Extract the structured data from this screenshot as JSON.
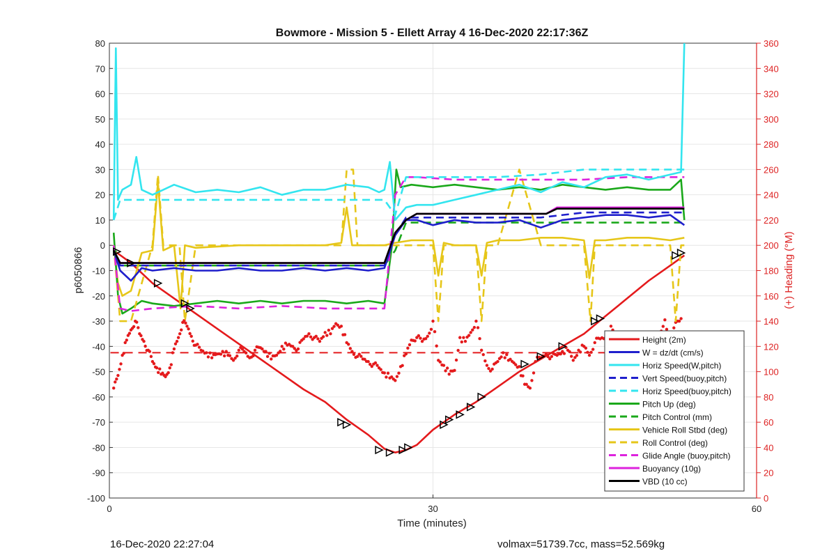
{
  "chart_data": {
    "type": "line",
    "title": "Bowmore - Mission 5 - Ellett Array 4 16-Dec-2020 22:17:36Z",
    "xlabel": "Time (minutes)",
    "ylabel_left": "p6050866",
    "ylabel_right": "(+) Heading (°M)",
    "xlim": [
      0,
      60
    ],
    "ylim_left": [
      -100,
      80
    ],
    "ylim_right": [
      0,
      360
    ],
    "x_ticks": [
      0,
      30,
      60
    ],
    "y_ticks_left": [
      -100,
      -90,
      -80,
      -70,
      -60,
      -50,
      -40,
      -30,
      -20,
      -10,
      0,
      10,
      20,
      30,
      40,
      50,
      60,
      70,
      80
    ],
    "y_ticks_right": [
      0,
      20,
      40,
      60,
      80,
      100,
      120,
      140,
      160,
      180,
      200,
      220,
      240,
      260,
      280,
      300,
      320,
      340,
      360
    ],
    "grid": true,
    "legend_position": "bottom-right",
    "colors": {
      "red": "#e41a1c",
      "blue": "#1f1fcc",
      "cyan": "#33e5ef",
      "green": "#1aa81a",
      "yellow": "#e6c619",
      "magenta": "#dd22dd",
      "black": "#000000",
      "right_axis": "#dd2222"
    },
    "series": [
      {
        "name": "Height (2m)",
        "color": "#e41a1c",
        "style": "solid",
        "axis": "left",
        "x": [
          0.4,
          2,
          4,
          6,
          8,
          10,
          12,
          14,
          16,
          18,
          20,
          22,
          24,
          25.5,
          26.5,
          27.5,
          28.5,
          30,
          32,
          34,
          36,
          38,
          40,
          42,
          44,
          46,
          48,
          50,
          52,
          53.3
        ],
        "y": [
          -2,
          -7,
          -15,
          -21,
          -27,
          -33,
          -39,
          -45,
          -51,
          -57,
          -62,
          -69,
          -75,
          -80.5,
          -82,
          -81,
          -79,
          -73,
          -67,
          -62,
          -56,
          -50,
          -45,
          -40,
          -35,
          -28,
          -21,
          -14,
          -8,
          -4
        ]
      },
      {
        "name": "W = dz/dt (cm/s)",
        "color": "#1f1fcc",
        "style": "solid",
        "axis": "left",
        "x": [
          0.4,
          1,
          2,
          3,
          4,
          6,
          8,
          10,
          12,
          14,
          16,
          18,
          20,
          22,
          24,
          25.5,
          26.5,
          27.5,
          28.5,
          30,
          32,
          34,
          36,
          38,
          40,
          42,
          44,
          46,
          48,
          50,
          52,
          53.3
        ],
        "y": [
          -2,
          -10,
          -14,
          -9,
          -10,
          -9,
          -10,
          -10,
          -9,
          -10,
          -10,
          -9,
          -10,
          -9,
          -10,
          -9,
          4,
          10,
          10,
          8,
          10,
          9,
          9,
          10,
          7,
          10,
          11,
          12,
          12,
          11,
          12,
          8
        ]
      },
      {
        "name": "Horiz Speed(W,pitch)",
        "color": "#33e5ef",
        "style": "solid",
        "axis": "left",
        "x": [
          0.4,
          0.6,
          0.8,
          1.2,
          2,
          2.5,
          3,
          4,
          6,
          8,
          10,
          12,
          14,
          16,
          18,
          20,
          22,
          24,
          25,
          25.5,
          26,
          26.5,
          27.5,
          28.5,
          30,
          32,
          34,
          36,
          38,
          40,
          42,
          44,
          46,
          48,
          50,
          52,
          53,
          53.3
        ],
        "y": [
          10,
          78,
          18,
          22,
          24,
          35,
          22,
          20,
          24,
          21,
          22,
          21,
          23,
          20,
          22,
          22,
          24,
          23,
          21,
          22,
          33,
          10,
          15,
          16,
          16,
          18,
          20,
          22,
          24,
          21,
          25,
          23,
          27,
          28,
          26,
          28,
          29,
          80
        ]
      },
      {
        "name": "Vert Speed(buoy,pitch)",
        "color": "#1f1fcc",
        "style": "dashed",
        "axis": "left",
        "x": [
          0.4,
          1,
          3,
          6,
          10,
          14,
          18,
          22,
          25.5,
          26.5,
          27.5,
          28.5,
          32,
          36,
          40,
          44,
          48,
          52,
          53.3
        ],
        "y": [
          -2,
          -8,
          -8,
          -8,
          -8,
          -8,
          -8,
          -8,
          -8,
          4,
          11,
          11,
          11,
          11,
          11,
          13,
          13,
          13,
          13
        ]
      },
      {
        "name": "Horiz Speed(buoy,pitch)",
        "color": "#33e5ef",
        "style": "dashed",
        "axis": "left",
        "x": [
          0.4,
          1,
          3,
          6,
          10,
          14,
          18,
          22,
          25.5,
          26.5,
          27.5,
          28.5,
          32,
          36,
          40,
          44,
          48,
          52,
          53.3
        ],
        "y": [
          10,
          18,
          18,
          18,
          18,
          18,
          18,
          18,
          18,
          12,
          27,
          27,
          27,
          27,
          28,
          30,
          30,
          30,
          30
        ]
      },
      {
        "name": "Pitch Up (deg)",
        "color": "#1aa81a",
        "style": "solid",
        "axis": "left",
        "x": [
          0.4,
          0.8,
          1.2,
          2,
          3,
          4,
          6,
          8,
          10,
          12,
          14,
          16,
          18,
          20,
          22,
          24,
          25.5,
          26.2,
          26.6,
          27,
          28,
          30,
          32,
          34,
          36,
          38,
          40,
          42,
          44,
          46,
          48,
          50,
          52,
          53,
          53.3
        ],
        "y": [
          5,
          -20,
          -27,
          -25,
          -22,
          -23,
          -24,
          -23,
          -22,
          -23,
          -22,
          -23,
          -22,
          -22,
          -23,
          -22,
          -23,
          0,
          30,
          23,
          24,
          23,
          24,
          23,
          22,
          23,
          22,
          24,
          23,
          22,
          23,
          22,
          22,
          26,
          10
        ]
      },
      {
        "name": "Pitch Control (mm)",
        "color": "#1aa81a",
        "style": "dashed",
        "axis": "left",
        "x": [
          0.4,
          1,
          4,
          8,
          12,
          16,
          20,
          24,
          25.5,
          26.5,
          27.5,
          28.5,
          32,
          36,
          40,
          44,
          48,
          52,
          53.3
        ],
        "y": [
          0,
          -8,
          -8,
          -8,
          -8,
          -8,
          -8,
          -8,
          -8,
          -2,
          9,
          9,
          9,
          9,
          9,
          9,
          9,
          9,
          9
        ]
      },
      {
        "name": "Vehicle Roll Stbd (deg)",
        "color": "#e6c619",
        "style": "solid",
        "axis": "left",
        "x": [
          0.4,
          0.8,
          1.2,
          2,
          3,
          4,
          4.5,
          5,
          6,
          6.6,
          7,
          8,
          12,
          16,
          20,
          21.5,
          22,
          22.5,
          24,
          25.5,
          26.5,
          28,
          30,
          30.5,
          31,
          32,
          34,
          34.5,
          35,
          36,
          38,
          40,
          42,
          44,
          44.5,
          45,
          46,
          48,
          50,
          52,
          53.3
        ],
        "y": [
          0,
          -15,
          -20,
          -18,
          -3,
          -2,
          25,
          -2,
          0,
          -25,
          0,
          -1,
          0,
          0,
          0,
          1,
          15,
          0,
          0,
          0,
          1,
          2,
          2,
          -12,
          1,
          0,
          0,
          -12,
          1,
          2,
          2,
          3,
          3,
          2,
          -13,
          2,
          2,
          3,
          3,
          2,
          3
        ]
      },
      {
        "name": "Roll Control (deg)",
        "color": "#e6c619",
        "style": "dashed",
        "axis": "left",
        "x": [
          0.4,
          1,
          2,
          4,
          4.5,
          5,
          6.5,
          7,
          8,
          12,
          16,
          20,
          21.5,
          22,
          22.6,
          23,
          25.5,
          26.5,
          28,
          30,
          30.5,
          31,
          32,
          34,
          34.5,
          35,
          36,
          38,
          40,
          44,
          44.6,
          45,
          48,
          52,
          52.5,
          53,
          53.3
        ],
        "y": [
          0,
          -30,
          -30,
          0,
          28,
          0,
          0,
          -30,
          0,
          0,
          0,
          0,
          0,
          30,
          30,
          0,
          0,
          0,
          0,
          0,
          -30,
          0,
          0,
          0,
          -30,
          0,
          0,
          30,
          0,
          0,
          -30,
          0,
          0,
          0,
          -30,
          0,
          0
        ]
      },
      {
        "name": "Glide Angle (buoy,pitch)",
        "color": "#dd22dd",
        "style": "dashed",
        "axis": "left",
        "x": [
          0.4,
          1,
          2,
          4,
          8,
          12,
          16,
          20,
          24,
          25.5,
          26.5,
          27.5,
          28.5,
          32,
          36,
          40,
          44,
          48,
          52,
          53.3
        ],
        "y": [
          0,
          -25,
          -26,
          -25,
          -24,
          -25,
          -24,
          -25,
          -25,
          -25,
          20,
          27,
          27,
          26,
          26,
          26,
          26,
          27,
          27,
          27
        ]
      },
      {
        "name": "Buoyancy (10g)",
        "color": "#dd22dd",
        "style": "solid",
        "axis": "left",
        "x": [
          0.4,
          1,
          10,
          20,
          25.5,
          26.5,
          27.5,
          28.5,
          40.5,
          41.5,
          53.3
        ],
        "y": [
          -2,
          -7,
          -7,
          -7,
          -7,
          5,
          10,
          12.5,
          12.5,
          15,
          15
        ]
      },
      {
        "name": "VBD (10 cc)",
        "color": "#000000",
        "style": "solid",
        "axis": "left",
        "x": [
          0.4,
          1,
          10,
          20,
          25.5,
          26.5,
          27.5,
          28.5,
          40.5,
          41.5,
          53.3
        ],
        "y": [
          -2,
          -7,
          -7,
          -7,
          -7,
          5,
          10,
          12.5,
          12.5,
          14.5,
          14.5
        ]
      }
    ],
    "heading_dots": {
      "color": "#e41a1c",
      "axis": "right",
      "x": [
        0.4,
        0.8,
        1.2,
        1.6,
        2,
        2.4,
        2.8,
        3.2,
        3.6,
        4,
        4.4,
        4.8,
        5.2,
        5.6,
        6,
        6.4,
        6.8,
        7.2,
        7.6,
        8,
        8.5,
        9,
        9.5,
        10,
        10.5,
        11,
        11.5,
        12,
        12.5,
        13,
        13.5,
        14,
        14.5,
        15,
        15.5,
        16,
        16.5,
        17,
        17.5,
        18,
        18.5,
        19,
        19.5,
        20,
        20.5,
        21,
        21.5,
        22,
        22.5,
        23,
        23.5,
        24,
        24.5,
        25,
        25.5,
        26,
        26.5,
        27,
        27.5,
        28,
        28.5,
        29,
        29.5,
        30,
        30.5,
        31,
        31.5,
        32,
        32.5,
        33,
        33.5,
        34,
        34.5,
        35,
        35.5,
        36,
        36.5,
        37,
        37.5,
        38,
        38.5,
        39,
        39.5,
        40,
        40.5,
        41,
        41.5,
        42,
        42.5,
        43,
        43.5,
        44,
        44.5,
        45,
        45.5,
        46,
        46.5,
        47,
        47.5,
        48,
        48.5,
        49,
        49.5,
        50,
        50.5,
        51,
        51.5,
        52,
        52.5,
        53
      ],
      "y": [
        87,
        97,
        113,
        125,
        133,
        140,
        130,
        124,
        117,
        108,
        103,
        98,
        96,
        103,
        118,
        127,
        139,
        136,
        128,
        121,
        117,
        115,
        111,
        114,
        116,
        113,
        109,
        117,
        116,
        111,
        117,
        119,
        116,
        110,
        113,
        120,
        121,
        120,
        118,
        126,
        130,
        127,
        124,
        131,
        130,
        138,
        136,
        123,
        116,
        112,
        110,
        108,
        106,
        103,
        99,
        95,
        93,
        104,
        114,
        125,
        127,
        124,
        128,
        140,
        109,
        105,
        98,
        101,
        127,
        124,
        131,
        140,
        117,
        105,
        102,
        108,
        115,
        109,
        107,
        104,
        90,
        87,
        108,
        111,
        114,
        112,
        113,
        116,
        117,
        109,
        117,
        120,
        113,
        123,
        126,
        127,
        136,
        121,
        112,
        119,
        121,
        118,
        113,
        111,
        119,
        127,
        141,
        123,
        139,
        142
      ]
    },
    "heading_mean": {
      "value": 115,
      "color": "#e41a1c",
      "style": "dashed",
      "axis": "right"
    },
    "markers": {
      "symbol": "triangle",
      "x": [
        0.7,
        2,
        4.5,
        7,
        7.5,
        21.5,
        22,
        25,
        26,
        27.2,
        27.7,
        31,
        31.5,
        32.5,
        33.5,
        34.5,
        38.5,
        40,
        42,
        45,
        45.5,
        52.5,
        53
      ],
      "y": [
        -2.5,
        -7,
        -15,
        -23,
        -25,
        -70,
        -71,
        -81,
        -82,
        -81,
        -80,
        -71,
        -69,
        -67,
        -64,
        -60,
        -47,
        -44,
        -40,
        -30,
        -29,
        -4,
        -3
      ]
    }
  },
  "footer": {
    "timestamp": "16-Dec-2020 22:27:04",
    "stats": "volmax=51739.7cc, mass=52.569kg"
  }
}
